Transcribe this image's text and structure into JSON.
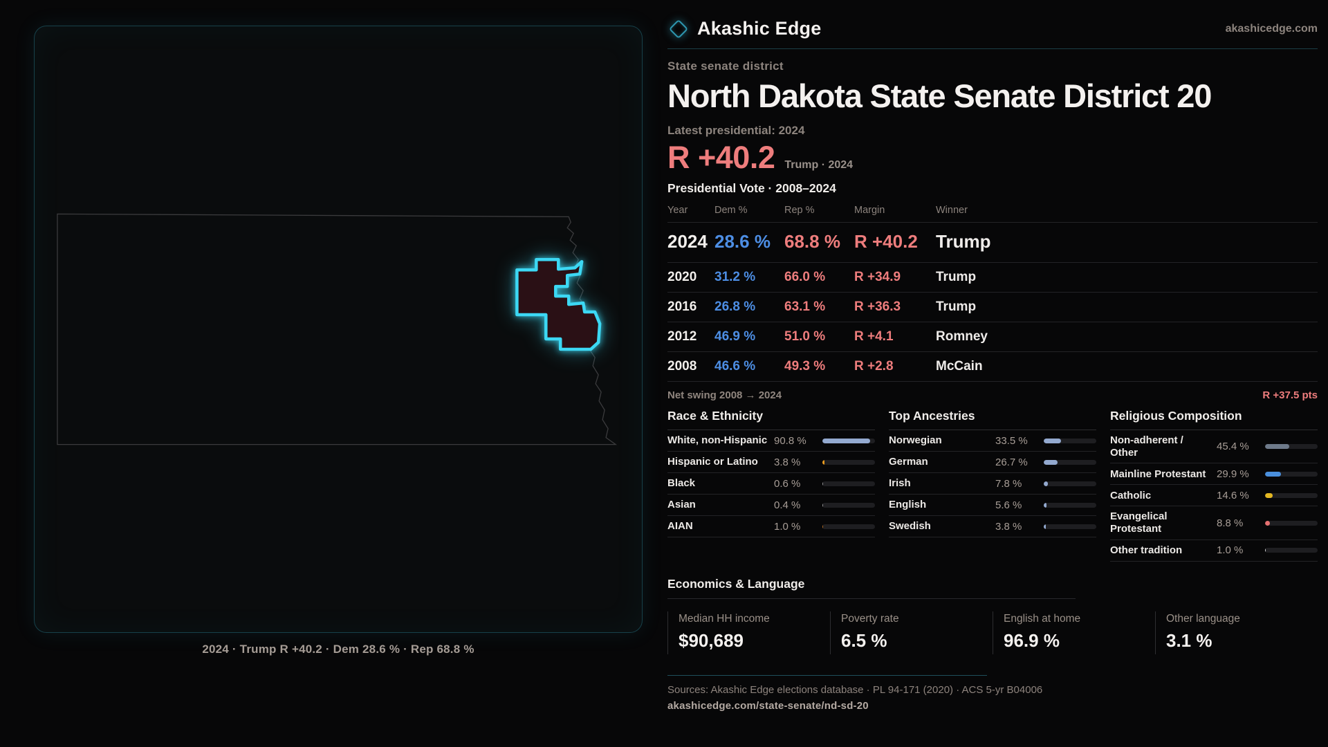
{
  "brand": {
    "name": "Akashic Edge",
    "domain": "akashicedge.com",
    "accent": "#3cd8f4"
  },
  "map": {
    "caption": "2024 · Trump R +40.2 · Dem 28.6 % · Rep 68.8 %",
    "state": "North Dakota",
    "district_outline_color": "#3cd8f4"
  },
  "header": {
    "eyebrow": "State senate district",
    "title": "North Dakota State Senate District 20",
    "latest_label": "Latest presidential: 2024",
    "margin_value": "R +40.2",
    "margin_context": "Trump · 2024"
  },
  "vote_table": {
    "title": "Presidential Vote · 2008–2024",
    "columns": [
      "Year",
      "Dem %",
      "Rep %",
      "Margin",
      "Winner"
    ],
    "rows": [
      {
        "year": "2024",
        "dem": "28.6 %",
        "rep": "68.8 %",
        "margin": "R +40.2",
        "winner": "Trump",
        "highlight": true
      },
      {
        "year": "2020",
        "dem": "31.2 %",
        "rep": "66.0 %",
        "margin": "R +34.9",
        "winner": "Trump",
        "highlight": false
      },
      {
        "year": "2016",
        "dem": "26.8 %",
        "rep": "63.1 %",
        "margin": "R +36.3",
        "winner": "Trump",
        "highlight": false
      },
      {
        "year": "2012",
        "dem": "46.9 %",
        "rep": "51.0 %",
        "margin": "R +4.1",
        "winner": "Romney",
        "highlight": false
      },
      {
        "year": "2008",
        "dem": "46.6 %",
        "rep": "49.3 %",
        "margin": "R +2.8",
        "winner": "McCain",
        "highlight": false
      }
    ],
    "net_swing_label": "Net swing 2008 → 2024",
    "net_swing_value": "R +37.5 pts"
  },
  "demographics": [
    {
      "title": "Race & Ethnicity",
      "rows": [
        {
          "label": "White, non-Hispanic",
          "value": "90.8 %",
          "pct": 90.8,
          "color": "#93a9cf"
        },
        {
          "label": "Hispanic or Latino",
          "value": "3.8 %",
          "pct": 3.8,
          "color": "#e89b1f"
        },
        {
          "label": "Black",
          "value": "0.6 %",
          "pct": 0.6,
          "color": "#9b9b9b"
        },
        {
          "label": "Asian",
          "value": "0.4 %",
          "pct": 0.4,
          "color": "#9b9b9b"
        },
        {
          "label": "AIAN",
          "value": "1.0 %",
          "pct": 1.0,
          "color": "#b36a1f"
        }
      ]
    },
    {
      "title": "Top Ancestries",
      "rows": [
        {
          "label": "Norwegian",
          "value": "33.5 %",
          "pct": 33.5,
          "color": "#93a9cf"
        },
        {
          "label": "German",
          "value": "26.7 %",
          "pct": 26.7,
          "color": "#93a9cf"
        },
        {
          "label": "Irish",
          "value": "7.8 %",
          "pct": 7.8,
          "color": "#93a9cf"
        },
        {
          "label": "English",
          "value": "5.6 %",
          "pct": 5.6,
          "color": "#93a9cf"
        },
        {
          "label": "Swedish",
          "value": "3.8 %",
          "pct": 3.8,
          "color": "#93a9cf"
        }
      ]
    },
    {
      "title": "Religious Composition",
      "rows": [
        {
          "label": "Non-adherent / Other",
          "value": "45.4 %",
          "pct": 45.4,
          "color": "#6e7a8a"
        },
        {
          "label": "Mainline Protestant",
          "value": "29.9 %",
          "pct": 29.9,
          "color": "#4a8fdd"
        },
        {
          "label": "Catholic",
          "value": "14.6 %",
          "pct": 14.6,
          "color": "#e3b722"
        },
        {
          "label": "Evangelical Protestant",
          "value": "8.8 %",
          "pct": 8.8,
          "color": "#e57070"
        },
        {
          "label": "Other tradition",
          "value": "1.0 %",
          "pct": 1.0,
          "color": "#d8d8d8"
        }
      ]
    }
  ],
  "economics": {
    "title": "Economics & Language",
    "stats": [
      {
        "label": "Median HH income",
        "value": "$90,689"
      },
      {
        "label": "Poverty rate",
        "value": "6.5 %"
      },
      {
        "label": "English at home",
        "value": "96.9 %"
      },
      {
        "label": "Other language",
        "value": "3.1 %"
      }
    ]
  },
  "footer": {
    "sources": "Sources: Akashic Edge elections database · PL 94-171 (2020) · ACS 5-yr B04006",
    "url": "akashicedge.com/state-senate/nd-sd-20"
  }
}
